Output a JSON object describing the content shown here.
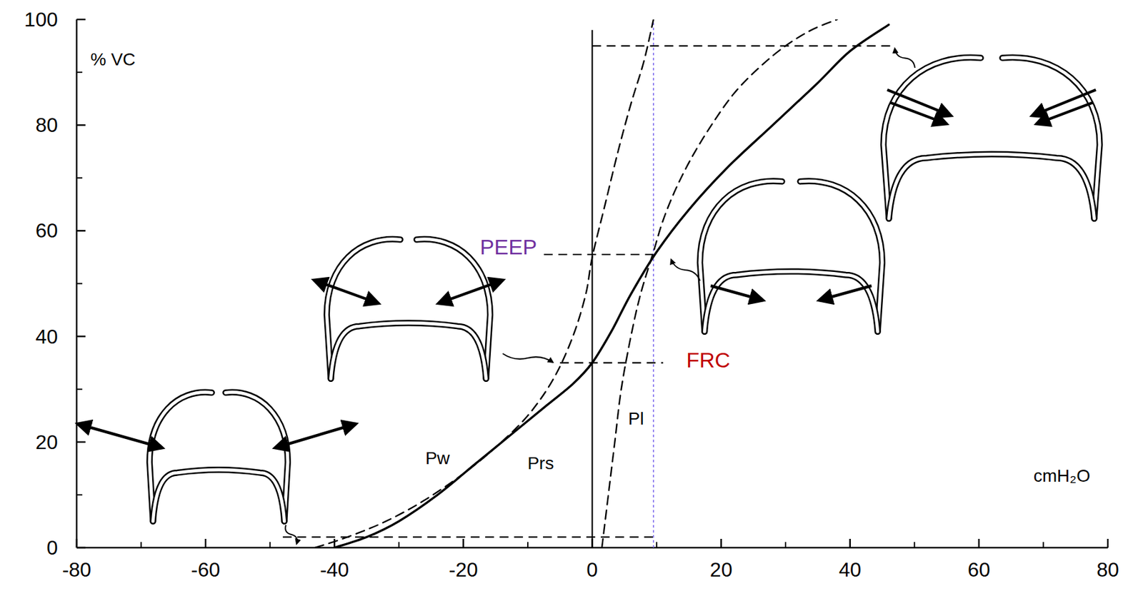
{
  "chart_data": {
    "type": "line",
    "xlabel": "cmH₂O",
    "ylabel": "% VC",
    "xlim": [
      -80,
      80
    ],
    "xticks": [
      -80,
      -60,
      -40,
      -20,
      0,
      20,
      40,
      60,
      80
    ],
    "ylim": [
      0,
      100
    ],
    "yticks": [
      0,
      20,
      40,
      60,
      80,
      100
    ],
    "grid": false,
    "tick_labels": true,
    "series": [
      {
        "name": "Prs",
        "color": "#000000",
        "line_style": "solid",
        "label_x": -8,
        "label_y": 16,
        "x": [
          -40,
          -35,
          -30,
          -24,
          -18,
          -12,
          -7,
          -3,
          0,
          3,
          6,
          10,
          15,
          21,
          28,
          35,
          40,
          46
        ],
        "values": [
          0,
          2,
          5,
          10,
          16,
          22,
          27,
          31,
          35,
          41,
          48,
          56,
          64,
          72,
          80,
          88,
          94,
          99
        ]
      },
      {
        "name": "Pw",
        "color": "#000000",
        "line_style": "dashed",
        "label_x": -24,
        "label_y": 17,
        "x": [
          -43,
          -38,
          -32,
          -26,
          -20,
          -15,
          -10,
          -6,
          -3,
          -1,
          0,
          2,
          4,
          6,
          8,
          9.5
        ],
        "values": [
          0,
          2,
          5,
          9,
          14,
          19,
          25,
          32,
          40,
          48,
          55,
          65,
          75,
          84,
          92,
          100
        ]
      },
      {
        "name": "Pl",
        "color": "#000000",
        "line_style": "dashed",
        "label_x": 6.8,
        "label_y": 24.5,
        "x": [
          1.5,
          2.5,
          3.5,
          4.5,
          6,
          7.5,
          9.5,
          11,
          13,
          15.5,
          18.5,
          22,
          26,
          30,
          34,
          38
        ],
        "values": [
          0,
          10,
          20,
          30,
          40,
          48,
          56,
          62,
          68,
          74,
          80,
          86,
          91,
          95,
          98,
          100
        ]
      }
    ],
    "annotations": [
      {
        "text": "PEEP",
        "x": -13,
        "y": 57,
        "color": "#7030a0"
      },
      {
        "text": "FRC",
        "x": 18,
        "y": 35.5,
        "color": "#c00000"
      }
    ],
    "reference_lines": [
      {
        "x": [
          0,
          47
        ],
        "y": 95,
        "color": "#000000",
        "line_style": "dashed"
      },
      {
        "x": [
          -7.5,
          10
        ],
        "y": 55.5,
        "color": "#000000",
        "line_style": "dashed"
      },
      {
        "x": [
          -5,
          11
        ],
        "y": 35,
        "color": "#000000",
        "line_style": "dashed"
      },
      {
        "x": [
          -48,
          9.5
        ],
        "y": 2,
        "color": "#000000",
        "line_style": "dashed"
      },
      {
        "x": 0,
        "y": [
          0,
          98
        ],
        "color": "#000000",
        "line_style": "solid"
      },
      {
        "x": 9.5,
        "y": [
          0,
          100
        ],
        "color": "#7b68ee",
        "line_style": "dotted"
      }
    ]
  }
}
